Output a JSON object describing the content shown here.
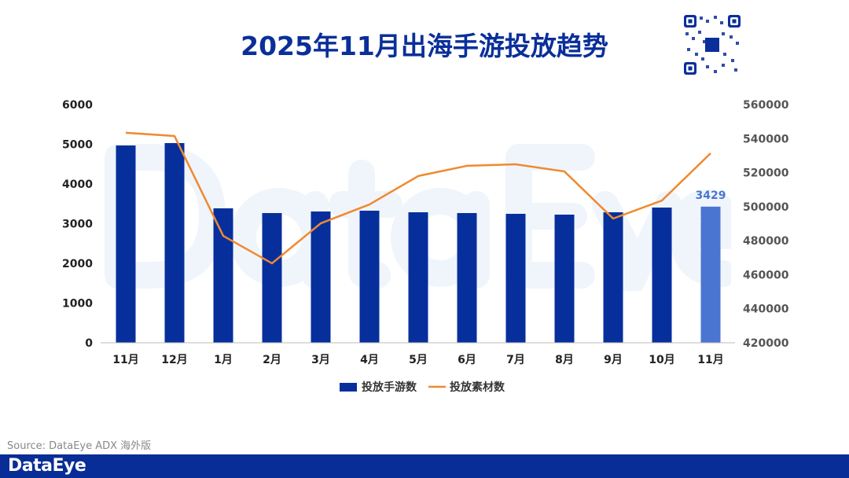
{
  "title": "2025年11月出海手游投放趋势",
  "source": "Source: DataEye ADX 海外版",
  "logo": "DataEye",
  "watermark": "DataEye",
  "colors": {
    "bar": "#062f9c",
    "bar_highlight": "#4a76d1",
    "line": "#f0892f",
    "title": "#0a2f9a",
    "footer": "#082d96"
  },
  "chart_data": {
    "type": "bar+line",
    "title": "2025年11月出海手游投放趋势",
    "categories": [
      "11月",
      "12月",
      "1月",
      "2月",
      "3月",
      "4月",
      "5月",
      "6月",
      "7月",
      "8月",
      "9月",
      "10月",
      "11月"
    ],
    "series": [
      {
        "name": "投放手游数",
        "type": "bar",
        "axis": "left",
        "values": [
          4970,
          5030,
          3386,
          3267,
          3307,
          3327,
          3287,
          3267,
          3248,
          3228,
          3287,
          3406,
          3429
        ]
      },
      {
        "name": "投放素材数",
        "type": "line",
        "axis": "right",
        "values": [
          543400,
          541500,
          482800,
          466700,
          490200,
          501300,
          518000,
          524000,
          524900,
          520700,
          493000,
          503600,
          531400
        ]
      }
    ],
    "ylim_left": [
      0,
      6000
    ],
    "yticks_left": [
      "0",
      "1000",
      "2000",
      "3000",
      "4000",
      "5000",
      "6000"
    ],
    "ylim_right": [
      420000,
      560000
    ],
    "yticks_right": [
      "420000",
      "440000",
      "460000",
      "480000",
      "500000",
      "520000",
      "540000",
      "560000"
    ],
    "data_labels": [
      {
        "index": 12,
        "text": "3429"
      }
    ],
    "legend": [
      "投放手游数",
      "投放素材数"
    ],
    "legend_position": "bottom",
    "grid": false
  }
}
